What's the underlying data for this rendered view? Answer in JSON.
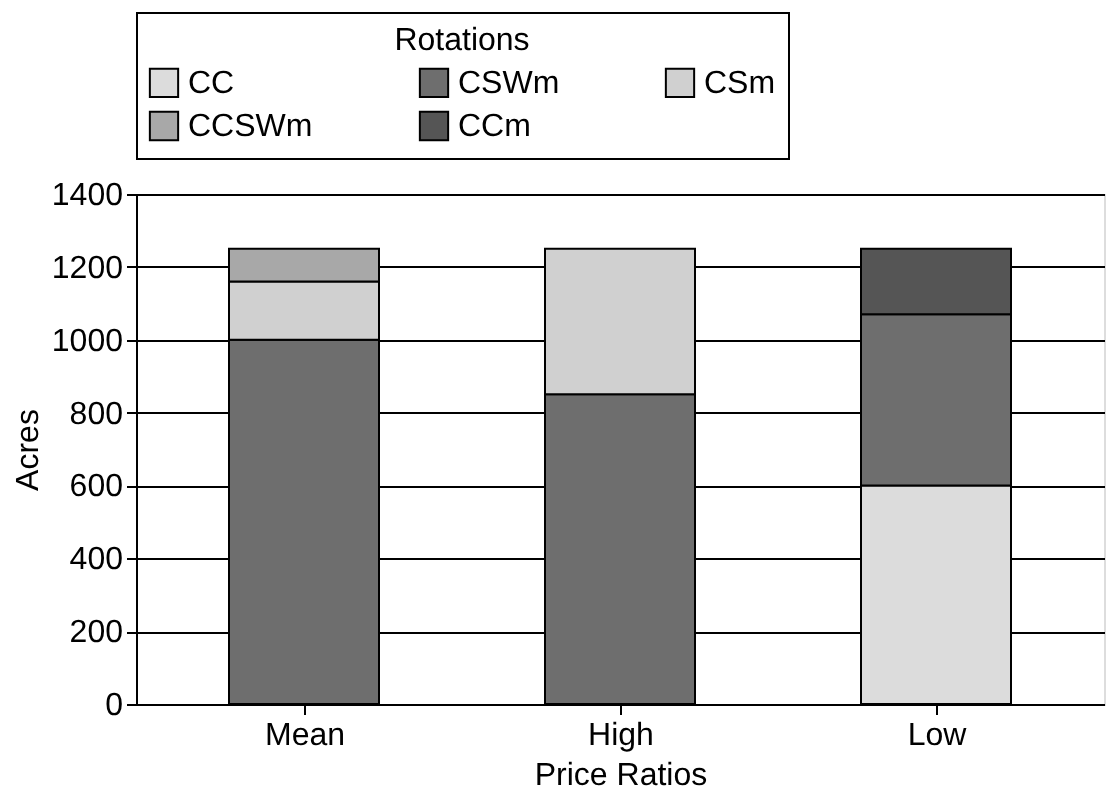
{
  "chart_data": {
    "type": "bar",
    "stacked": true,
    "xlabel": "Price Ratios",
    "ylabel": "Acres",
    "legend_title": "Rotations",
    "legend": "top",
    "grid": "y",
    "categories": [
      "Mean",
      "High",
      "Low"
    ],
    "series": [
      {
        "name": "CC",
        "color": "#dcdcdc",
        "values": [
          null,
          null,
          600
        ]
      },
      {
        "name": "CSWm",
        "color": "#6e6e6e",
        "values": [
          1000,
          850,
          470
        ]
      },
      {
        "name": "CSm",
        "color": "#d0d0d0",
        "values": [
          160,
          400,
          null
        ]
      },
      {
        "name": "CCSWm",
        "color": "#a8a8a8",
        "values": [
          90,
          null,
          null
        ]
      },
      {
        "name": "CCm",
        "color": "#555555",
        "values": [
          null,
          null,
          180
        ]
      }
    ],
    "ylim": [
      0,
      1400
    ],
    "yticks": [
      0,
      200,
      400,
      600,
      800,
      1000,
      1200,
      1400
    ]
  }
}
